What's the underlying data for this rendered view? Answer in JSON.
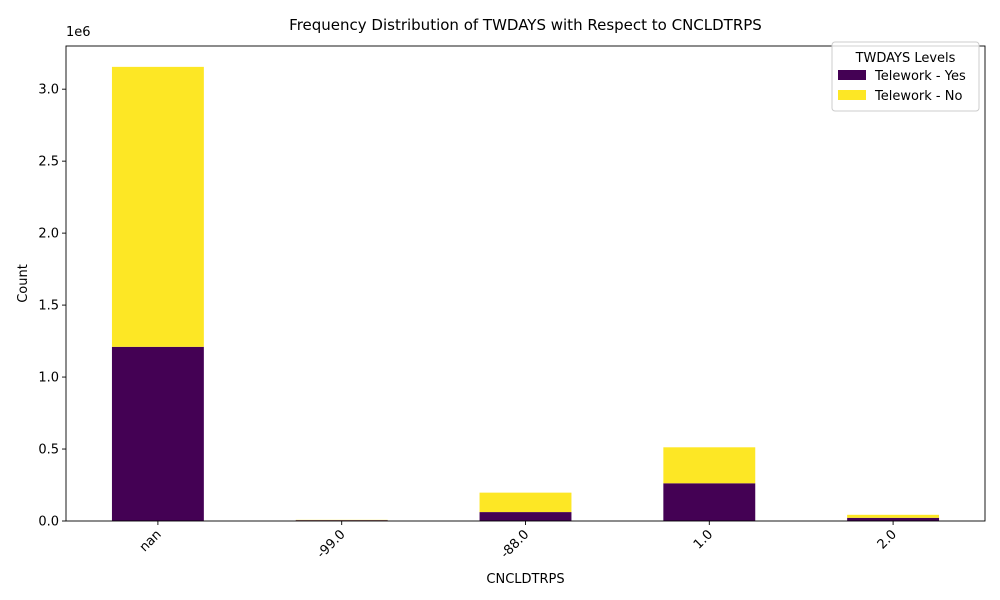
{
  "chart_data": {
    "type": "bar",
    "stacked": true,
    "title": "Frequency Distribution of TWDAYS with Respect to CNCLDTRPS",
    "xlabel": "CNCLDTRPS",
    "ylabel": "Count",
    "y_offset_label": "1e6",
    "y_scale": 1000000,
    "categories": [
      "nan",
      "-99.0",
      "-88.0",
      "1.0",
      "2.0"
    ],
    "series": [
      {
        "name": "Telework - Yes",
        "color": "#440154",
        "values": [
          1210000,
          6000,
          62000,
          262000,
          22000
        ]
      },
      {
        "name": "Telework - No",
        "color": "#fde725",
        "values": [
          1945000,
          2000,
          135000,
          250000,
          21000
        ]
      }
    ],
    "ylim": [
      0,
      3300000
    ],
    "yticks": [
      0,
      500000,
      1000000,
      1500000,
      2000000,
      2500000,
      3000000
    ],
    "ytick_labels": [
      "0.0",
      "0.5",
      "1.0",
      "1.5",
      "2.0",
      "2.5",
      "3.0"
    ],
    "legend": {
      "title": "TWDAYS Levels",
      "position": "top-right"
    },
    "grid": false
  }
}
